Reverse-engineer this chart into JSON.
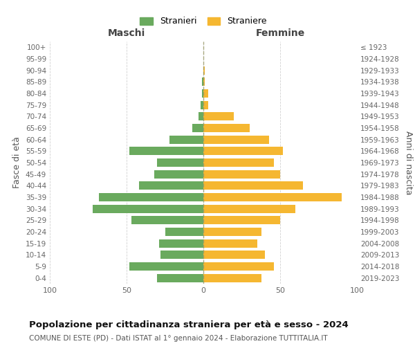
{
  "age_groups": [
    "0-4",
    "5-9",
    "10-14",
    "15-19",
    "20-24",
    "25-29",
    "30-34",
    "35-39",
    "40-44",
    "45-49",
    "50-54",
    "55-59",
    "60-64",
    "65-69",
    "70-74",
    "75-79",
    "80-84",
    "85-89",
    "90-94",
    "95-99",
    "100+"
  ],
  "birth_years": [
    "2019-2023",
    "2014-2018",
    "2009-2013",
    "2004-2008",
    "1999-2003",
    "1994-1998",
    "1989-1993",
    "1984-1988",
    "1979-1983",
    "1974-1978",
    "1969-1973",
    "1964-1968",
    "1959-1963",
    "1954-1958",
    "1949-1953",
    "1944-1948",
    "1939-1943",
    "1934-1938",
    "1929-1933",
    "1924-1928",
    "≤ 1923"
  ],
  "males": [
    30,
    48,
    28,
    29,
    25,
    47,
    72,
    68,
    42,
    32,
    30,
    48,
    22,
    7,
    3,
    2,
    1,
    1,
    0,
    0,
    0
  ],
  "females": [
    38,
    46,
    40,
    35,
    38,
    50,
    60,
    90,
    65,
    50,
    46,
    52,
    43,
    30,
    20,
    3,
    3,
    1,
    1,
    0,
    0
  ],
  "male_color": "#6aaa5e",
  "female_color": "#f5b731",
  "male_label": "Stranieri",
  "female_label": "Straniere",
  "title_main": "Popolazione per cittadinanza straniera per età e sesso - 2024",
  "title_sub": "COMUNE DI ESTE (PD) - Dati ISTAT al 1° gennaio 2024 - Elaborazione TUTTITALIA.IT",
  "xlabel_left": "Maschi",
  "xlabel_right": "Femmine",
  "ylabel_left": "Fasce di età",
  "ylabel_right": "Anni di nascita",
  "xlim": 100,
  "background_color": "#ffffff",
  "grid_color": "#cccccc"
}
